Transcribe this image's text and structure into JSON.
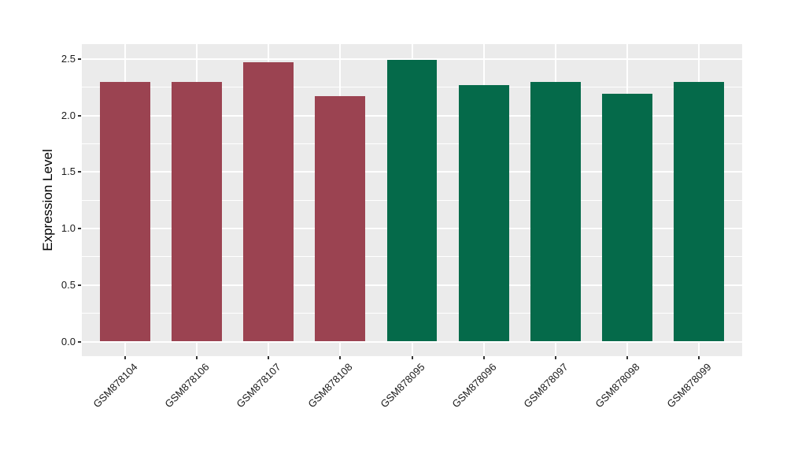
{
  "figure": {
    "background": "#FFFFFF"
  },
  "chart_data": {
    "type": "bar",
    "title": "",
    "xlabel": "",
    "ylabel": "Expression Level",
    "categories": [
      "GSM878104",
      "GSM878106",
      "GSM878107",
      "GSM878108",
      "GSM878095",
      "GSM878096",
      "GSM878097",
      "GSM878098",
      "GSM878099"
    ],
    "values": [
      2.3,
      2.3,
      2.47,
      2.17,
      2.49,
      2.27,
      2.3,
      2.19,
      2.3
    ],
    "bar_colors": [
      "#9B4351",
      "#9B4351",
      "#9B4351",
      "#9B4351",
      "#056A4A",
      "#056A4A",
      "#056A4A",
      "#056A4A",
      "#056A4A"
    ],
    "group_colors": {
      "red_group": "#9B4351",
      "green_group": "#056A4A"
    },
    "ylim": [
      0,
      2.5
    ],
    "yticks": [
      0,
      0.5,
      1,
      1.5,
      2,
      2.5
    ],
    "ytick_labels": [
      "0.0",
      "0.5",
      "1.0",
      "1.5",
      "2.0",
      "2.5"
    ],
    "x_label_angle_deg": 45,
    "grid": "white major + minor horizontal, white major vertical",
    "legend": "none",
    "panel_background": "#EBEBEB",
    "grid_color": "#FFFFFF",
    "tick_color": "#333333",
    "label_color": "#1A1A1A"
  }
}
